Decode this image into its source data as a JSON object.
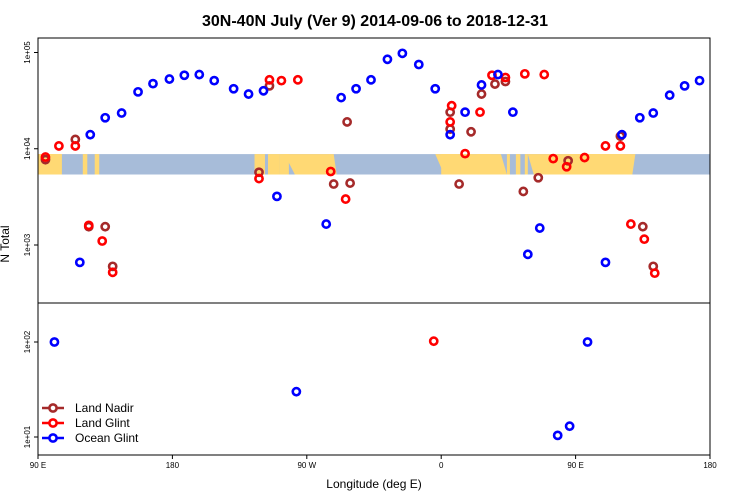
{
  "chart_data": {
    "type": "scatter",
    "title": "30N-40N July (Ver 9)   2014-09-06 to 2018-12-31",
    "xlabel": "Longitude (deg E)",
    "ylabel": "N Total",
    "x_axis": {
      "range": [
        90,
        540
      ],
      "ticks": [
        90,
        180,
        270,
        360,
        450,
        540
      ],
      "tick_labels": [
        "90 E",
        "180",
        "90 W",
        "0",
        "90 E",
        "180"
      ]
    },
    "y_axis": {
      "scale": "log",
      "ticks": [
        10,
        100,
        1000,
        10000,
        100000
      ],
      "tick_labels": [
        "1e+01",
        "1e+02",
        "1e+03",
        "1e+04",
        "1e+05"
      ]
    },
    "panels": [
      {
        "name": "upper",
        "y_range": [
          250,
          150000
        ]
      },
      {
        "name": "lower",
        "y_range": [
          9,
          250
        ]
      }
    ],
    "land_band": {
      "y_range": [
        5400,
        8800
      ],
      "land_color": "#ffd974",
      "ocean_color": "#a7bcd9"
    },
    "legend": {
      "position": "bottom-left"
    },
    "series": [
      {
        "name": "Land Nadir",
        "color": "#a52a2a",
        "points": [
          [
            95,
            7700
          ],
          [
            115,
            12500
          ],
          [
            124,
            1550
          ],
          [
            135,
            1550
          ],
          [
            140,
            600
          ],
          [
            238,
            5700
          ],
          [
            245,
            45000
          ],
          [
            288,
            4300
          ],
          [
            297,
            19000
          ],
          [
            299,
            4400
          ],
          [
            366,
            16000
          ],
          [
            366,
            24000
          ],
          [
            372,
            4300
          ],
          [
            380,
            15000
          ],
          [
            387,
            37000
          ],
          [
            396,
            47000
          ],
          [
            403,
            50000
          ],
          [
            415,
            3600
          ],
          [
            425,
            5000
          ],
          [
            445,
            7500
          ],
          [
            480,
            13500
          ],
          [
            495,
            1550
          ],
          [
            502,
            600
          ]
        ]
      },
      {
        "name": "Land Glint",
        "color": "#ff0000",
        "points": [
          [
            95,
            8200
          ],
          [
            104,
            10700
          ],
          [
            115,
            10700
          ],
          [
            124,
            1600
          ],
          [
            133,
            1100
          ],
          [
            140,
            520
          ],
          [
            238,
            4900
          ],
          [
            245,
            52000
          ],
          [
            253,
            51000
          ],
          [
            264,
            52000
          ],
          [
            286,
            5800
          ],
          [
            296,
            3000
          ],
          [
            355,
            102
          ],
          [
            366,
            19000
          ],
          [
            367,
            28000
          ],
          [
            376,
            8900
          ],
          [
            386,
            24000
          ],
          [
            394,
            58000
          ],
          [
            403,
            55000
          ],
          [
            416,
            60000
          ],
          [
            429,
            59000
          ],
          [
            435,
            7900
          ],
          [
            444,
            6500
          ],
          [
            456,
            8100
          ],
          [
            470,
            10700
          ],
          [
            480,
            10700
          ],
          [
            487,
            1650
          ],
          [
            496,
            1150
          ],
          [
            503,
            510
          ]
        ]
      },
      {
        "name": "Ocean Glint",
        "color": "#0000ff",
        "points": [
          [
            101,
            100
          ],
          [
            118,
            660
          ],
          [
            125,
            14000
          ],
          [
            135,
            21000
          ],
          [
            146,
            23500
          ],
          [
            157,
            39000
          ],
          [
            167,
            47500
          ],
          [
            178,
            53000
          ],
          [
            188,
            58000
          ],
          [
            198,
            59000
          ],
          [
            208,
            51000
          ],
          [
            221,
            42000
          ],
          [
            231,
            37000
          ],
          [
            241,
            40000
          ],
          [
            250,
            3200
          ],
          [
            263,
            30
          ],
          [
            283,
            1650
          ],
          [
            293,
            34000
          ],
          [
            303,
            42000
          ],
          [
            313,
            52000
          ],
          [
            324,
            85000
          ],
          [
            334,
            98000
          ],
          [
            345,
            75000
          ],
          [
            356,
            42000
          ],
          [
            366,
            14000
          ],
          [
            376,
            24000
          ],
          [
            387,
            46000
          ],
          [
            398,
            59000
          ],
          [
            408,
            24000
          ],
          [
            418,
            800
          ],
          [
            426,
            1500
          ],
          [
            438,
            10.4
          ],
          [
            446,
            13
          ],
          [
            458,
            100
          ],
          [
            470,
            660
          ],
          [
            481,
            14000
          ],
          [
            493,
            21000
          ],
          [
            502,
            23500
          ],
          [
            513,
            36000
          ],
          [
            523,
            45000
          ],
          [
            533,
            51000
          ]
        ]
      }
    ]
  }
}
